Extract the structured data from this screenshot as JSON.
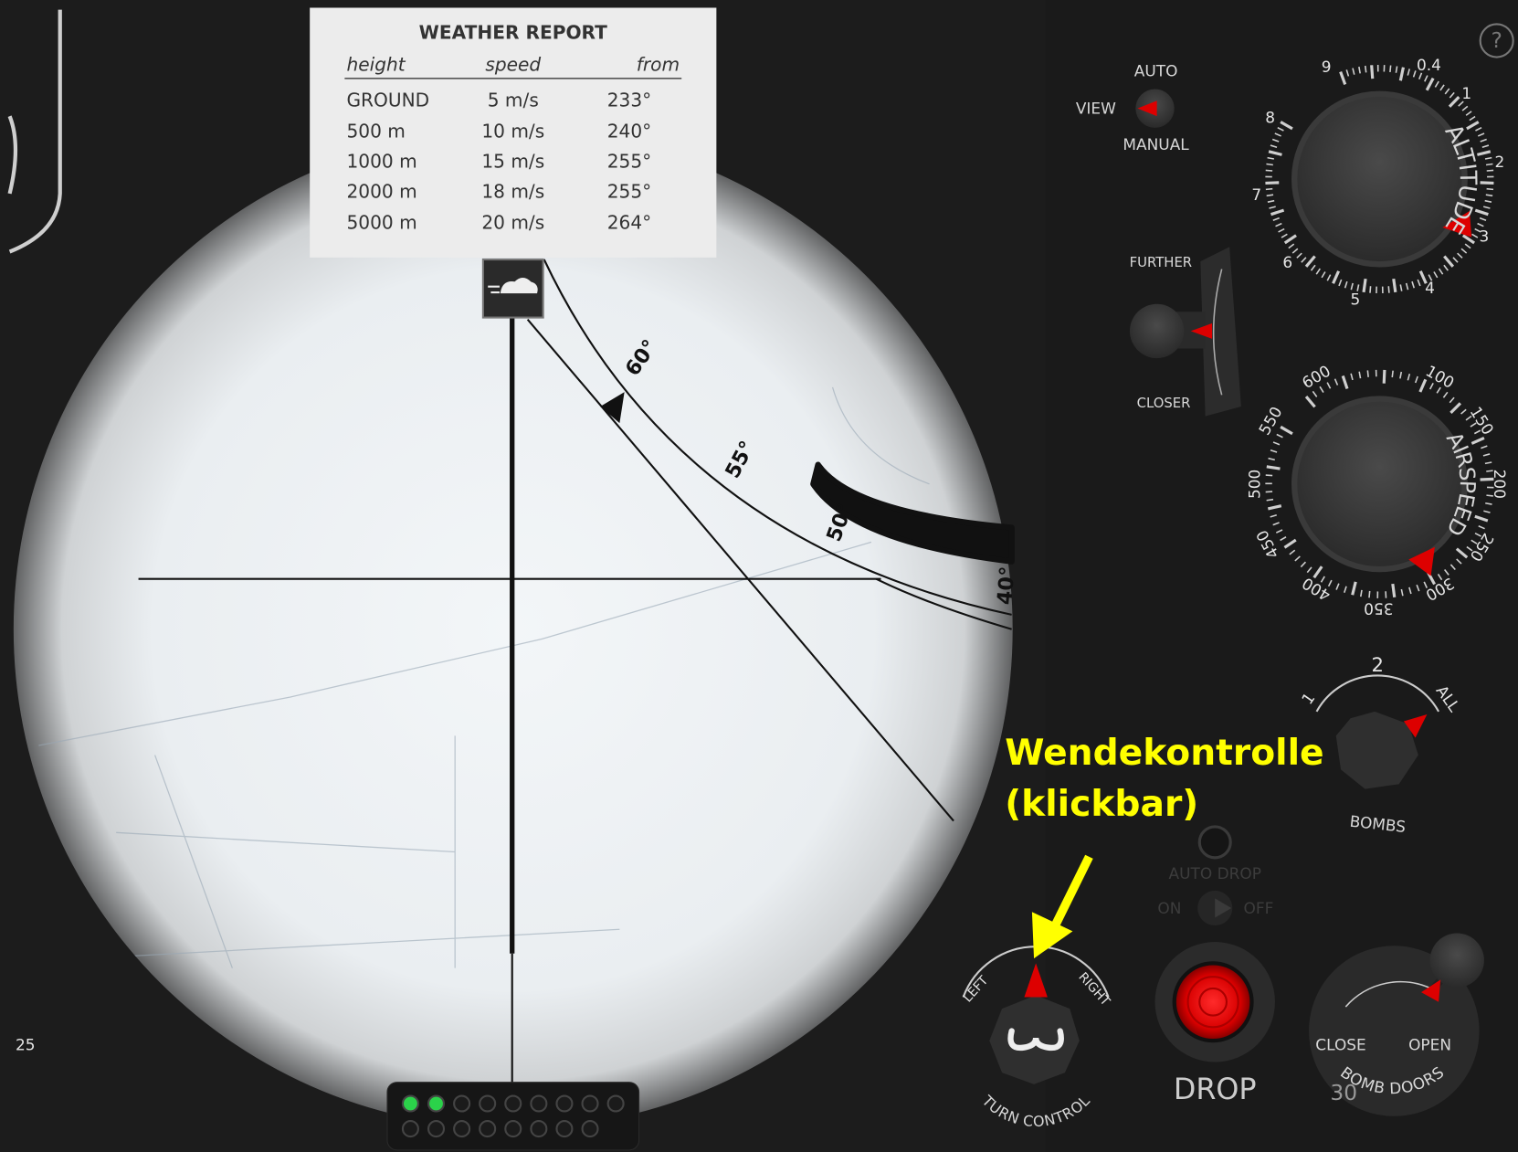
{
  "weather_report": {
    "title": "WEATHER REPORT",
    "columns": [
      "height",
      "speed",
      "from"
    ],
    "rows": [
      [
        "GROUND",
        "5 m/s",
        "233°"
      ],
      [
        "500 m",
        "10 m/s",
        "240°"
      ],
      [
        "1000 m",
        "15 m/s",
        "255°"
      ],
      [
        "2000 m",
        "18 m/s",
        "255°"
      ],
      [
        "5000 m",
        "20 m/s",
        "264°"
      ]
    ]
  },
  "sight": {
    "angle_labels": [
      "60°",
      "55°",
      "50°",
      "40°"
    ],
    "left_counter": "25"
  },
  "view": {
    "auto": "AUTO",
    "label": "VIEW",
    "manual": "MANUAL"
  },
  "range": {
    "further": "FURTHER",
    "closer": "CLOSER"
  },
  "altitude": {
    "label": "ALTITUDE",
    "scale": [
      "9",
      "0.4",
      "1",
      "2",
      "3",
      "4",
      "5",
      "6",
      "7",
      "8"
    ]
  },
  "airspeed": {
    "label": "AIRSPEED",
    "scale": [
      "600",
      "100",
      "150",
      "200",
      "250",
      "300",
      "350",
      "400",
      "450",
      "500",
      "550"
    ]
  },
  "bombs": {
    "label": "BOMBS",
    "settings": [
      "1",
      "2",
      "ALL"
    ]
  },
  "auto_drop": {
    "label": "AUTO DROP",
    "on": "ON",
    "off": "OFF"
  },
  "drop": {
    "label": "DROP"
  },
  "bomb_doors": {
    "label": "BOMB DOORS",
    "close": "CLOSE",
    "open": "OPEN",
    "counter": "30"
  },
  "turn_control": {
    "label": "TURN CONTROL",
    "left": "LEFT",
    "right": "RIGHT"
  },
  "annotation": {
    "lines": [
      "Wendekontrolle",
      "(klickbar)"
    ]
  },
  "help": "?"
}
